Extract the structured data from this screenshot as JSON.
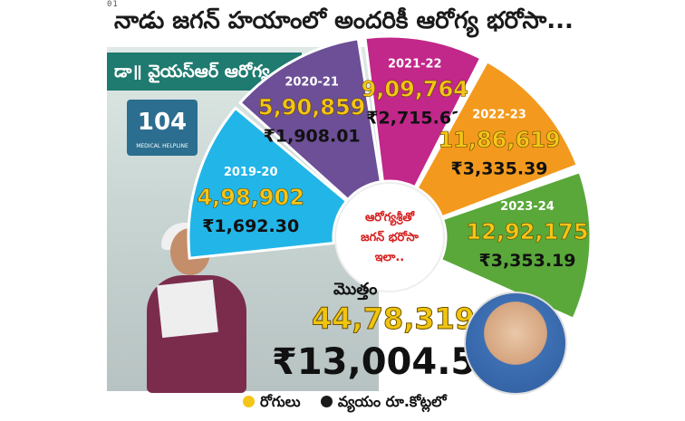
{
  "corner_tag": "01",
  "headline": "నాడు జగన్ హయాంలో అందరికీ ఆరోగ్య భరోసా...",
  "photo": {
    "sign_text": "డా॥ వైయస్ఆర్ ఆరోగ్య",
    "badge_number": "104",
    "badge_caption": "MEDICAL HELPLINE"
  },
  "center_text": [
    "ఆరోగ్యశ్రీతో",
    "జగన్ భరోసా",
    "ఇలా.."
  ],
  "colors": {
    "patients": "#f5c518",
    "expense": "#1a1a1a",
    "seg_2019_20": "#22b5e8",
    "seg_2020_21": "#6c4f96",
    "seg_2021_22": "#c2278a",
    "seg_2022_23": "#f39a1e",
    "seg_2023_24": "#5aa83a"
  },
  "chart_data": {
    "type": "pie",
    "title": "",
    "categories": [
      "2019-20",
      "2020-21",
      "2021-22",
      "2022-23",
      "2023-24"
    ],
    "series": [
      {
        "name": "రోగులు",
        "values": [
          498902,
          590859,
          909764,
          1186619,
          1292175
        ],
        "labels": [
          "4,98,902",
          "5,90,859",
          "9,09,764",
          "11,86,619",
          "12,92,175"
        ]
      },
      {
        "name": "వ్యయం రూ.కోట్లలో",
        "values": [
          1692.3,
          1908.01,
          2715.62,
          3335.39,
          3353.19
        ],
        "labels": [
          "₹1,692.30",
          "₹1,908.01",
          "₹2,715.62",
          "₹3,335.39",
          "₹3,353.19"
        ]
      }
    ],
    "total": {
      "label": "మొత్తం",
      "patients": "44,78,319",
      "expense": "₹13,004.51"
    },
    "legend": {
      "position": "bottom",
      "patients_label": "రోగులు",
      "expense_label": "వ్యయం రూ.కోట్లలో"
    }
  }
}
